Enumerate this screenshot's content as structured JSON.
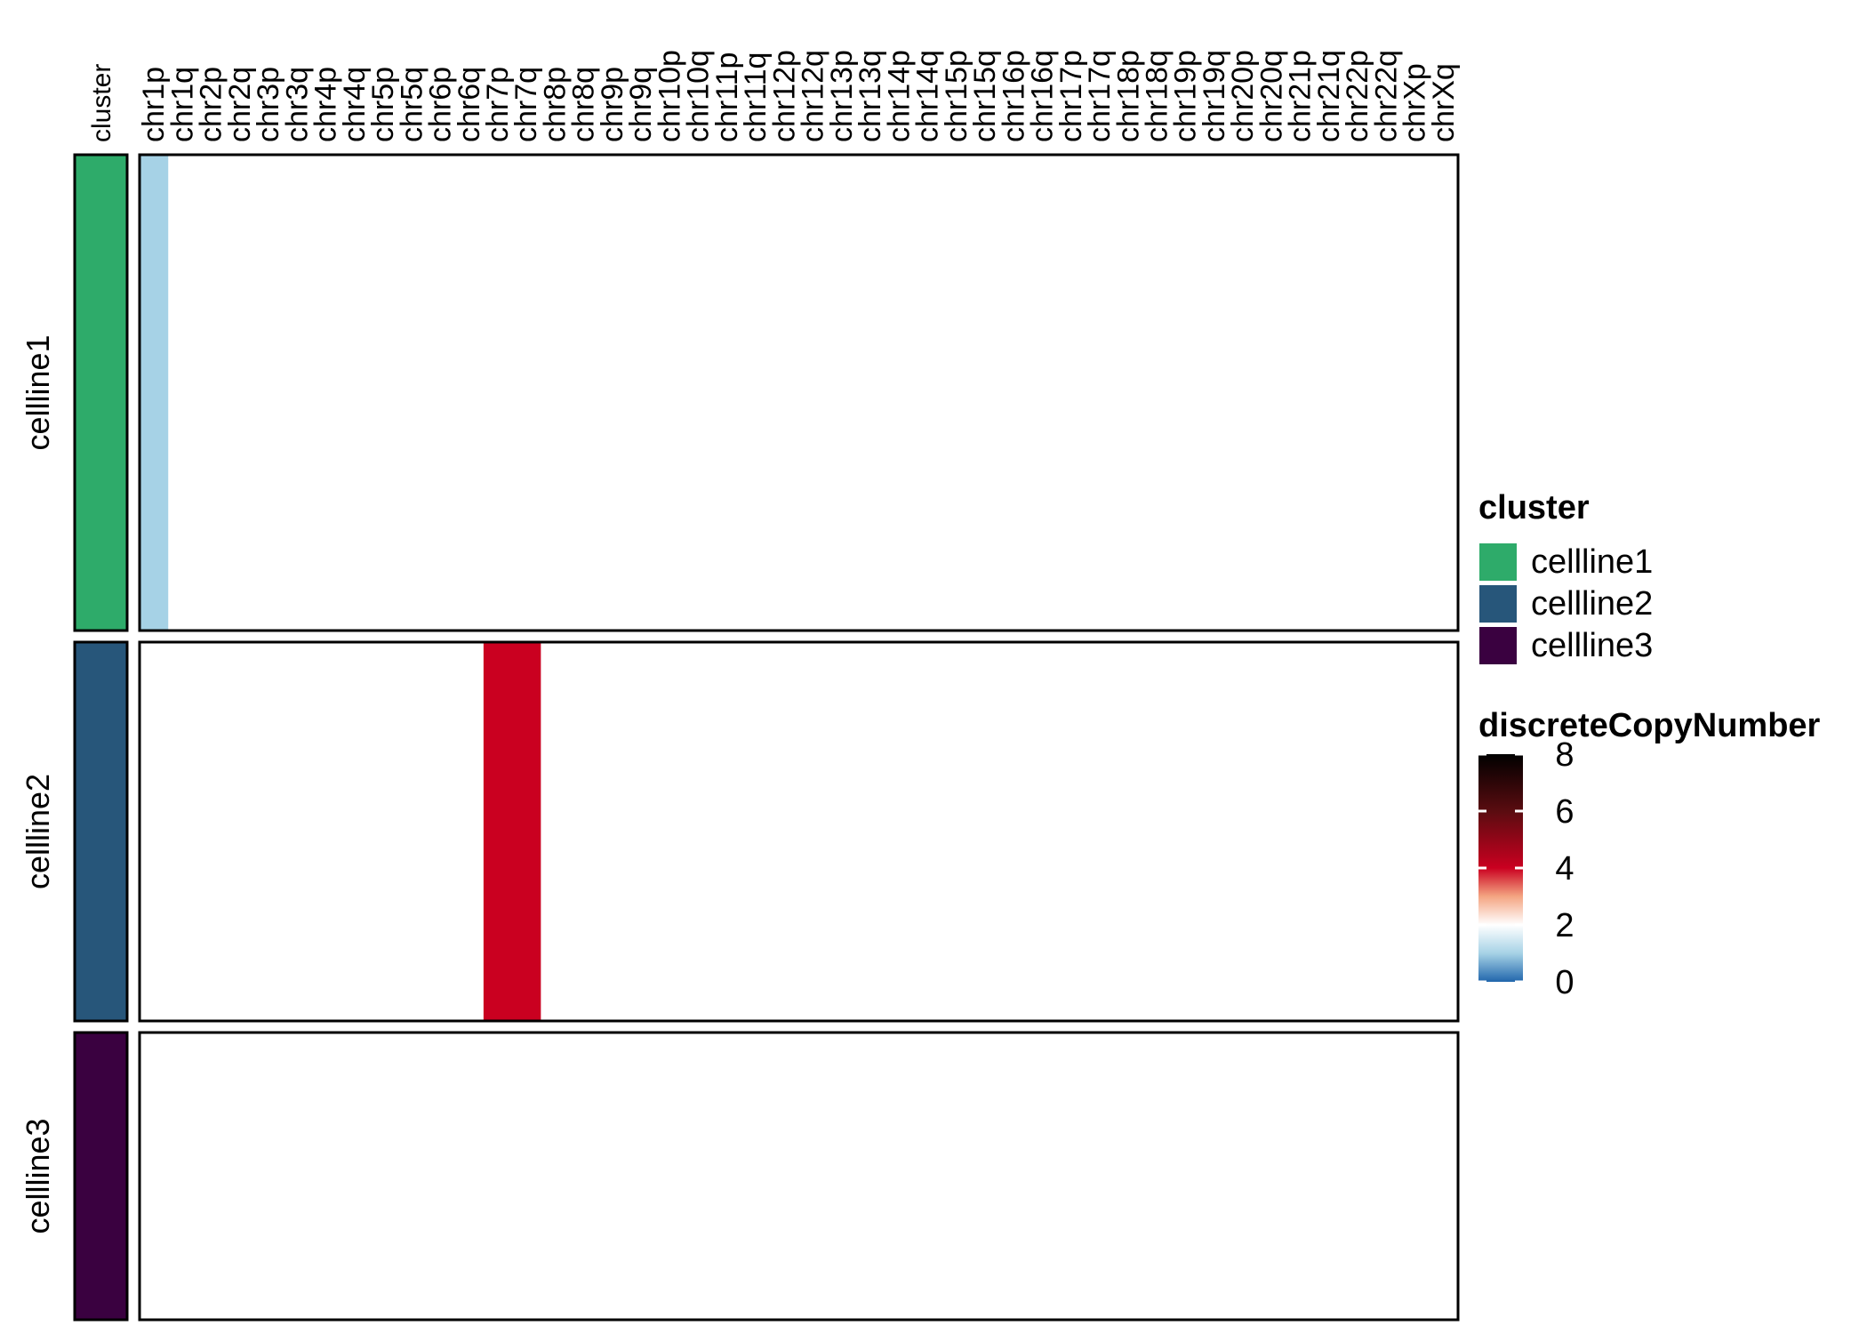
{
  "chart_data": {
    "type": "heatmap",
    "annotation_column_label": "cluster",
    "columns": [
      "chr1p",
      "chr1q",
      "chr2p",
      "chr2q",
      "chr3p",
      "chr3q",
      "chr4p",
      "chr4q",
      "chr5p",
      "chr5q",
      "chr6p",
      "chr6q",
      "chr7p",
      "chr7q",
      "chr8p",
      "chr8q",
      "chr9p",
      "chr9q",
      "chr10p",
      "chr10q",
      "chr11p",
      "chr11q",
      "chr12p",
      "chr12q",
      "chr13p",
      "chr13q",
      "chr14p",
      "chr14q",
      "chr15p",
      "chr15q",
      "chr16p",
      "chr16q",
      "chr17p",
      "chr17q",
      "chr18p",
      "chr18q",
      "chr19p",
      "chr19q",
      "chr20p",
      "chr20q",
      "chr21p",
      "chr21q",
      "chr22p",
      "chr22q",
      "chrXp",
      "chrXq"
    ],
    "rows": [
      {
        "name": "cellline1",
        "cluster": "cellline1",
        "values": [
          1,
          2,
          2,
          2,
          2,
          2,
          2,
          2,
          2,
          2,
          2,
          2,
          2,
          2,
          2,
          2,
          2,
          2,
          2,
          2,
          2,
          2,
          2,
          2,
          2,
          2,
          2,
          2,
          2,
          2,
          2,
          2,
          2,
          2,
          2,
          2,
          2,
          2,
          2,
          2,
          2,
          2,
          2,
          2,
          2,
          2
        ]
      },
      {
        "name": "cellline2",
        "cluster": "cellline2",
        "values": [
          2,
          2,
          2,
          2,
          2,
          2,
          2,
          2,
          2,
          2,
          2,
          2,
          4,
          4,
          2,
          2,
          2,
          2,
          2,
          2,
          2,
          2,
          2,
          2,
          2,
          2,
          2,
          2,
          2,
          2,
          2,
          2,
          2,
          2,
          2,
          2,
          2,
          2,
          2,
          2,
          2,
          2,
          2,
          2,
          2,
          2
        ]
      },
      {
        "name": "cellline3",
        "cluster": "cellline3",
        "values": [
          2,
          2,
          2,
          2,
          2,
          2,
          2,
          2,
          2,
          2,
          2,
          2,
          2,
          2,
          2,
          2,
          2,
          2,
          2,
          2,
          2,
          2,
          2,
          2,
          2,
          2,
          2,
          2,
          2,
          2,
          2,
          2,
          2,
          2,
          2,
          2,
          2,
          2,
          2,
          2,
          2,
          2,
          2,
          2,
          2,
          2
        ]
      }
    ],
    "legend_cluster": {
      "title": "cluster",
      "items": [
        {
          "label": "cellline1",
          "color": "#2eab6a"
        },
        {
          "label": "cellline2",
          "color": "#27567a"
        },
        {
          "label": "cellline3",
          "color": "#3a0140"
        }
      ]
    },
    "legend_value": {
      "title": "discreteCopyNumber",
      "range": [
        0,
        8
      ],
      "ticks": [
        "0",
        "2",
        "4",
        "6",
        "8"
      ],
      "color_stops": [
        {
          "value": 0,
          "color": "#2166ac"
        },
        {
          "value": 1,
          "color": "#a6d2e6"
        },
        {
          "value": 2,
          "color": "#ffffff"
        },
        {
          "value": 3,
          "color": "#f4a582"
        },
        {
          "value": 4,
          "color": "#ca0020"
        },
        {
          "value": 6,
          "color": "#5a0c10"
        },
        {
          "value": 8,
          "color": "#000000"
        }
      ]
    },
    "grid": false,
    "legend_position": "right"
  }
}
